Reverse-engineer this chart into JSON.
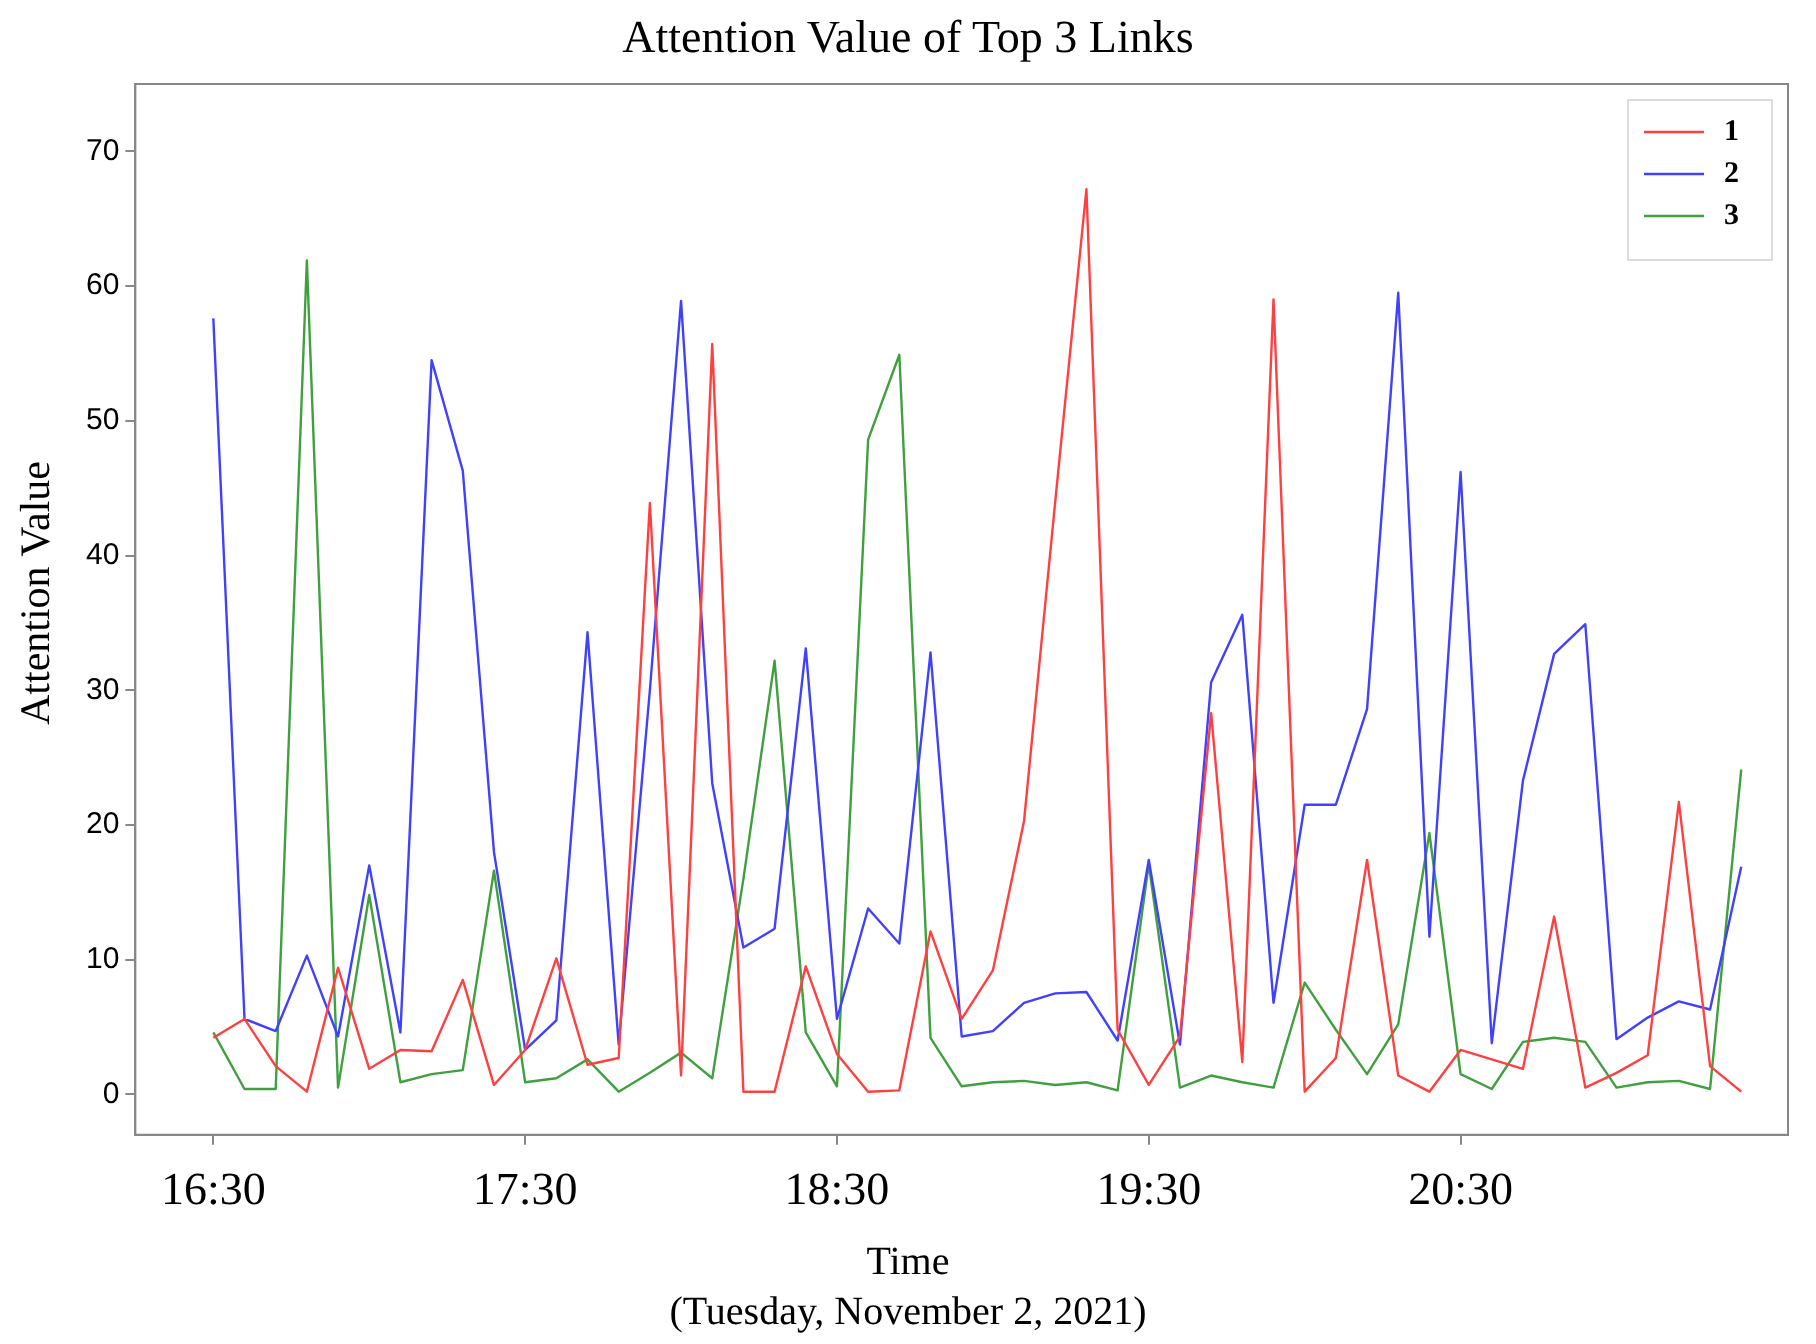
{
  "chart_data": {
    "type": "line",
    "title": "Attention Value of Top 3 Links",
    "xlabel": "Time",
    "ylabel": "Attention Value",
    "annotations": [
      "(Tuesday, November 2, 2021)"
    ],
    "categories": [
      "16:30",
      null,
      null,
      null,
      null,
      null,
      null,
      null,
      null,
      null,
      "17:30",
      null,
      null,
      null,
      null,
      null,
      null,
      null,
      null,
      null,
      "18:30",
      null,
      null,
      null,
      null,
      null,
      null,
      null,
      null,
      null,
      "19:30",
      null,
      null,
      null,
      null,
      null,
      null,
      null,
      null,
      null,
      "20:30",
      null,
      null,
      null,
      null,
      null,
      null,
      null,
      null,
      null
    ],
    "ylim": [
      -3,
      75
    ],
    "yticks": [
      0,
      10,
      20,
      30,
      40,
      50,
      60,
      70
    ],
    "grid": false,
    "legend": "top right",
    "marker": "none",
    "line_style": "solid",
    "series": [
      {
        "name": "1",
        "color": "#ff4040",
        "values": [
          4.2,
          5.6,
          2.1,
          0.2,
          9.4,
          1.9,
          3.3,
          3.2,
          8.5,
          0.7,
          3.3,
          10.1,
          2.2,
          2.7,
          43.9,
          1.4,
          55.7,
          0.2,
          0.2,
          9.5,
          3.0,
          0.2,
          0.3,
          12.1,
          5.6,
          9.2,
          20.3,
          44,
          67.2,
          4.8,
          0.7,
          4.3,
          28.3,
          2.4,
          59.0,
          0.2,
          2.7,
          17.4,
          1.4,
          0.2,
          3.3,
          2.6,
          1.9,
          13.2,
          0.5,
          1.6,
          2.9,
          21.7,
          2.1,
          0.2
        ]
      },
      {
        "name": "2",
        "color": "#4040ff",
        "values": [
          57.6,
          5.6,
          4.7,
          10.3,
          4.3,
          17.0,
          4.6,
          54.5,
          46.3,
          18,
          3.3,
          5.5,
          34.3,
          3.7,
          30,
          58.9,
          23.1,
          10.9,
          12.3,
          33.1,
          5.6,
          13.8,
          11.2,
          32.8,
          4.3,
          4.7,
          6.8,
          7.5,
          7.6,
          4.0,
          17.4,
          3.7,
          30.6,
          35.6,
          6.8,
          21.5,
          21.5,
          28.6,
          59.5,
          11.7,
          46.2,
          3.8,
          23.3,
          32.7,
          34.9,
          4.1,
          5.7,
          6.9,
          6.3,
          16.9
        ]
      },
      {
        "name": "3",
        "color": "#40a040",
        "values": [
          4.6,
          0.4,
          0.4,
          61.9,
          0.5,
          14.8,
          0.9,
          1.5,
          1.8,
          16.6,
          0.9,
          1.2,
          2.6,
          0.2,
          1.6,
          3.1,
          1.2,
          16,
          32.2,
          4.6,
          0.6,
          48.6,
          54.9,
          4.2,
          0.6,
          0.9,
          1.0,
          0.7,
          0.9,
          0.3,
          17.1,
          0.5,
          1.4,
          0.9,
          0.5,
          8.3,
          4.8,
          1.5,
          5.2,
          19.4,
          1.5,
          0.4,
          3.9,
          4.2,
          3.9,
          0.5,
          0.9,
          1.0,
          0.4,
          24.1
        ]
      }
    ]
  }
}
